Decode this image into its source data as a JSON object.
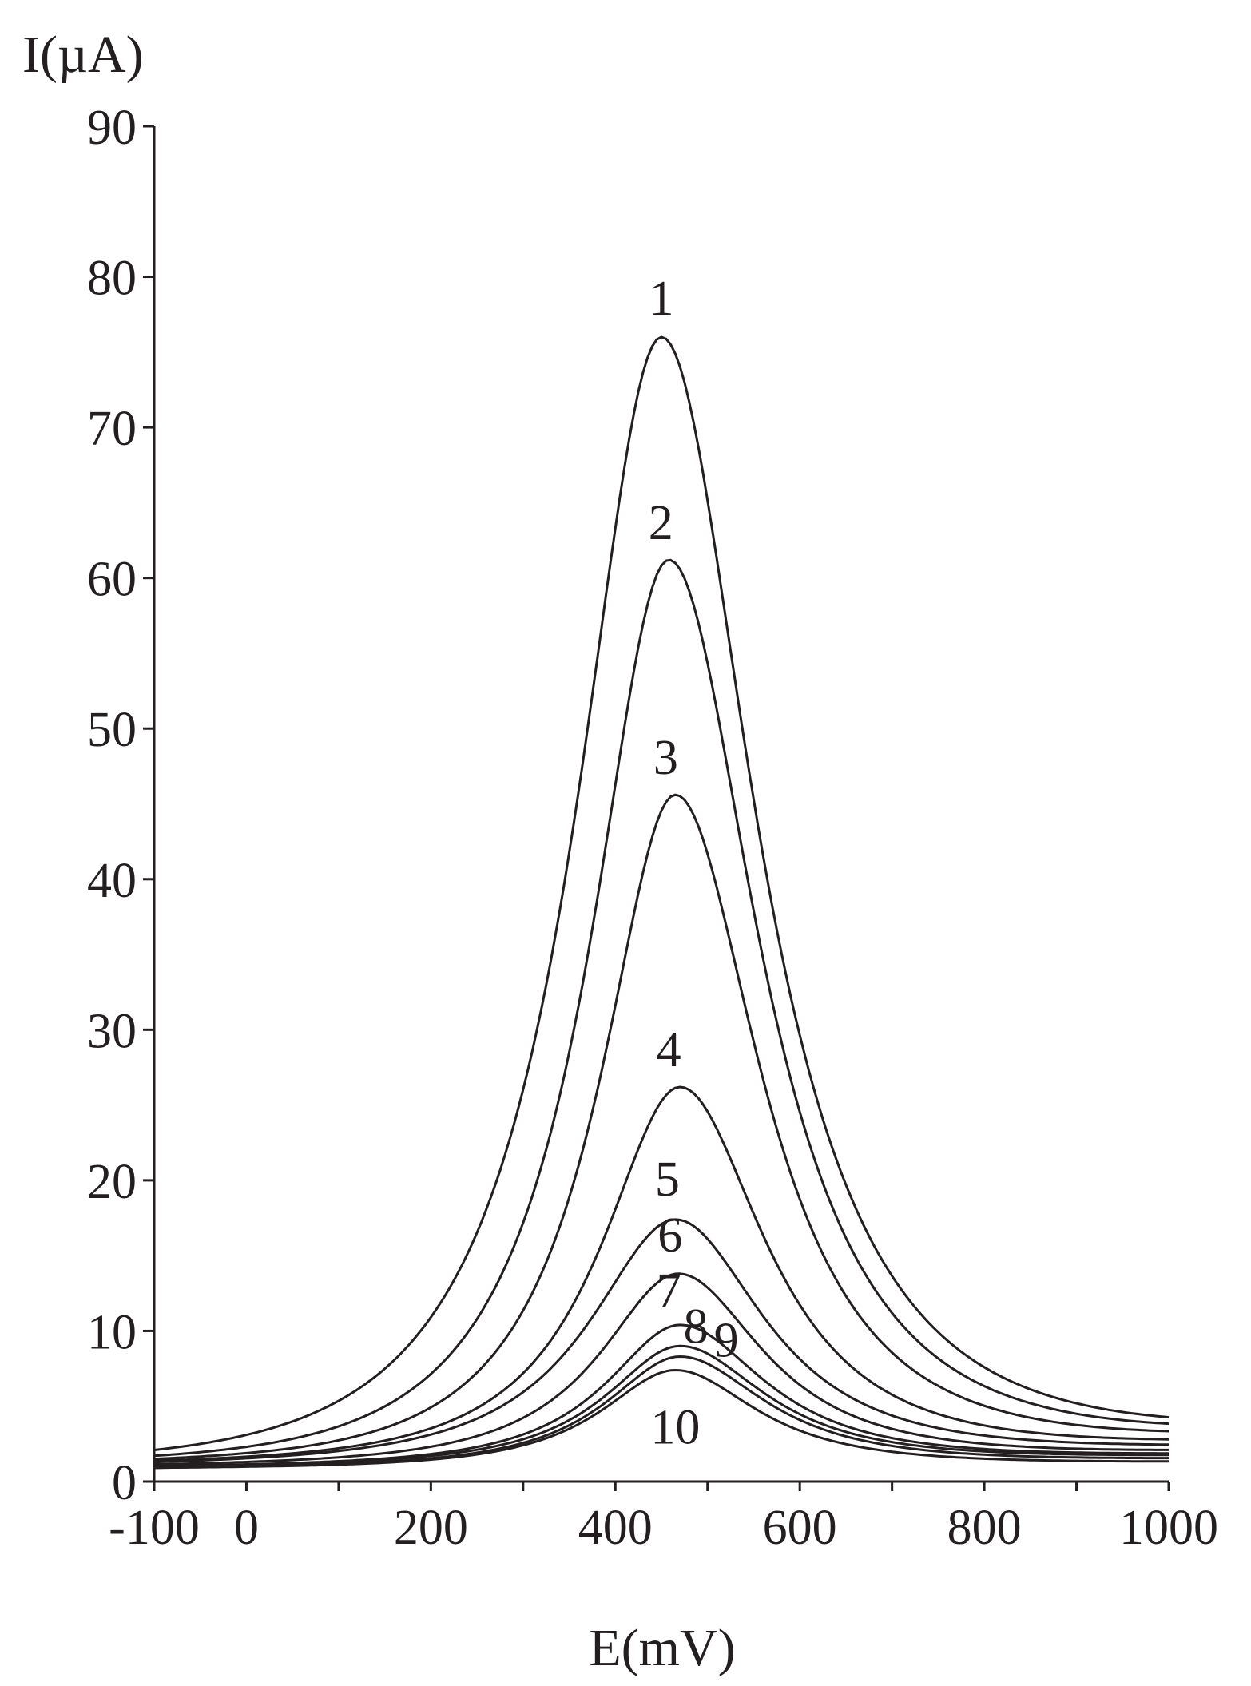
{
  "chart_data": {
    "type": "line",
    "ylabel": "I(µA)",
    "xlabel": "E(mV)",
    "xlim": [
      -100,
      1000
    ],
    "ylim": [
      0,
      90
    ],
    "x_ticks": [
      -100,
      0,
      200,
      400,
      600,
      800,
      1000
    ],
    "y_ticks": [
      0,
      10,
      20,
      30,
      40,
      50,
      60,
      70,
      80,
      90
    ],
    "line_color": "#231f20",
    "grid": false,
    "series": [
      {
        "name": "1",
        "peak_x": 450,
        "peak": 76.0,
        "base_left": 1.6,
        "base_right": 3.5,
        "w_left": 115,
        "w_right": 125
      },
      {
        "name": "2",
        "peak_x": 458,
        "peak": 61.2,
        "base_left": 1.5,
        "base_right": 3.3,
        "w_left": 105,
        "w_right": 120
      },
      {
        "name": "3",
        "peak_x": 465,
        "peak": 45.6,
        "base_left": 1.4,
        "base_right": 3.0,
        "w_left": 100,
        "w_right": 115
      },
      {
        "name": "4",
        "peak_x": 470,
        "peak": 26.2,
        "base_left": 1.3,
        "base_right": 2.6,
        "w_left": 105,
        "w_right": 115
      },
      {
        "name": "5",
        "peak_x": 465,
        "peak": 17.4,
        "base_left": 1.2,
        "base_right": 2.3,
        "w_left": 115,
        "w_right": 120
      },
      {
        "name": "6",
        "peak_x": 468,
        "peak": 13.8,
        "base_left": 1.1,
        "base_right": 2.0,
        "w_left": 105,
        "w_right": 115
      },
      {
        "name": "7",
        "peak_x": 470,
        "peak": 10.4,
        "base_left": 1.0,
        "base_right": 1.8,
        "w_left": 100,
        "w_right": 115
      },
      {
        "name": "8",
        "peak_x": 470,
        "peak": 9.0,
        "base_left": 1.0,
        "base_right": 1.7,
        "w_left": 100,
        "w_right": 115
      },
      {
        "name": "9",
        "peak_x": 470,
        "peak": 8.3,
        "base_left": 0.9,
        "base_right": 1.5,
        "w_left": 100,
        "w_right": 115
      },
      {
        "name": "10",
        "peak_x": 465,
        "peak": 7.4,
        "base_left": 0.9,
        "base_right": 1.3,
        "w_left": 100,
        "w_right": 110
      }
    ]
  }
}
